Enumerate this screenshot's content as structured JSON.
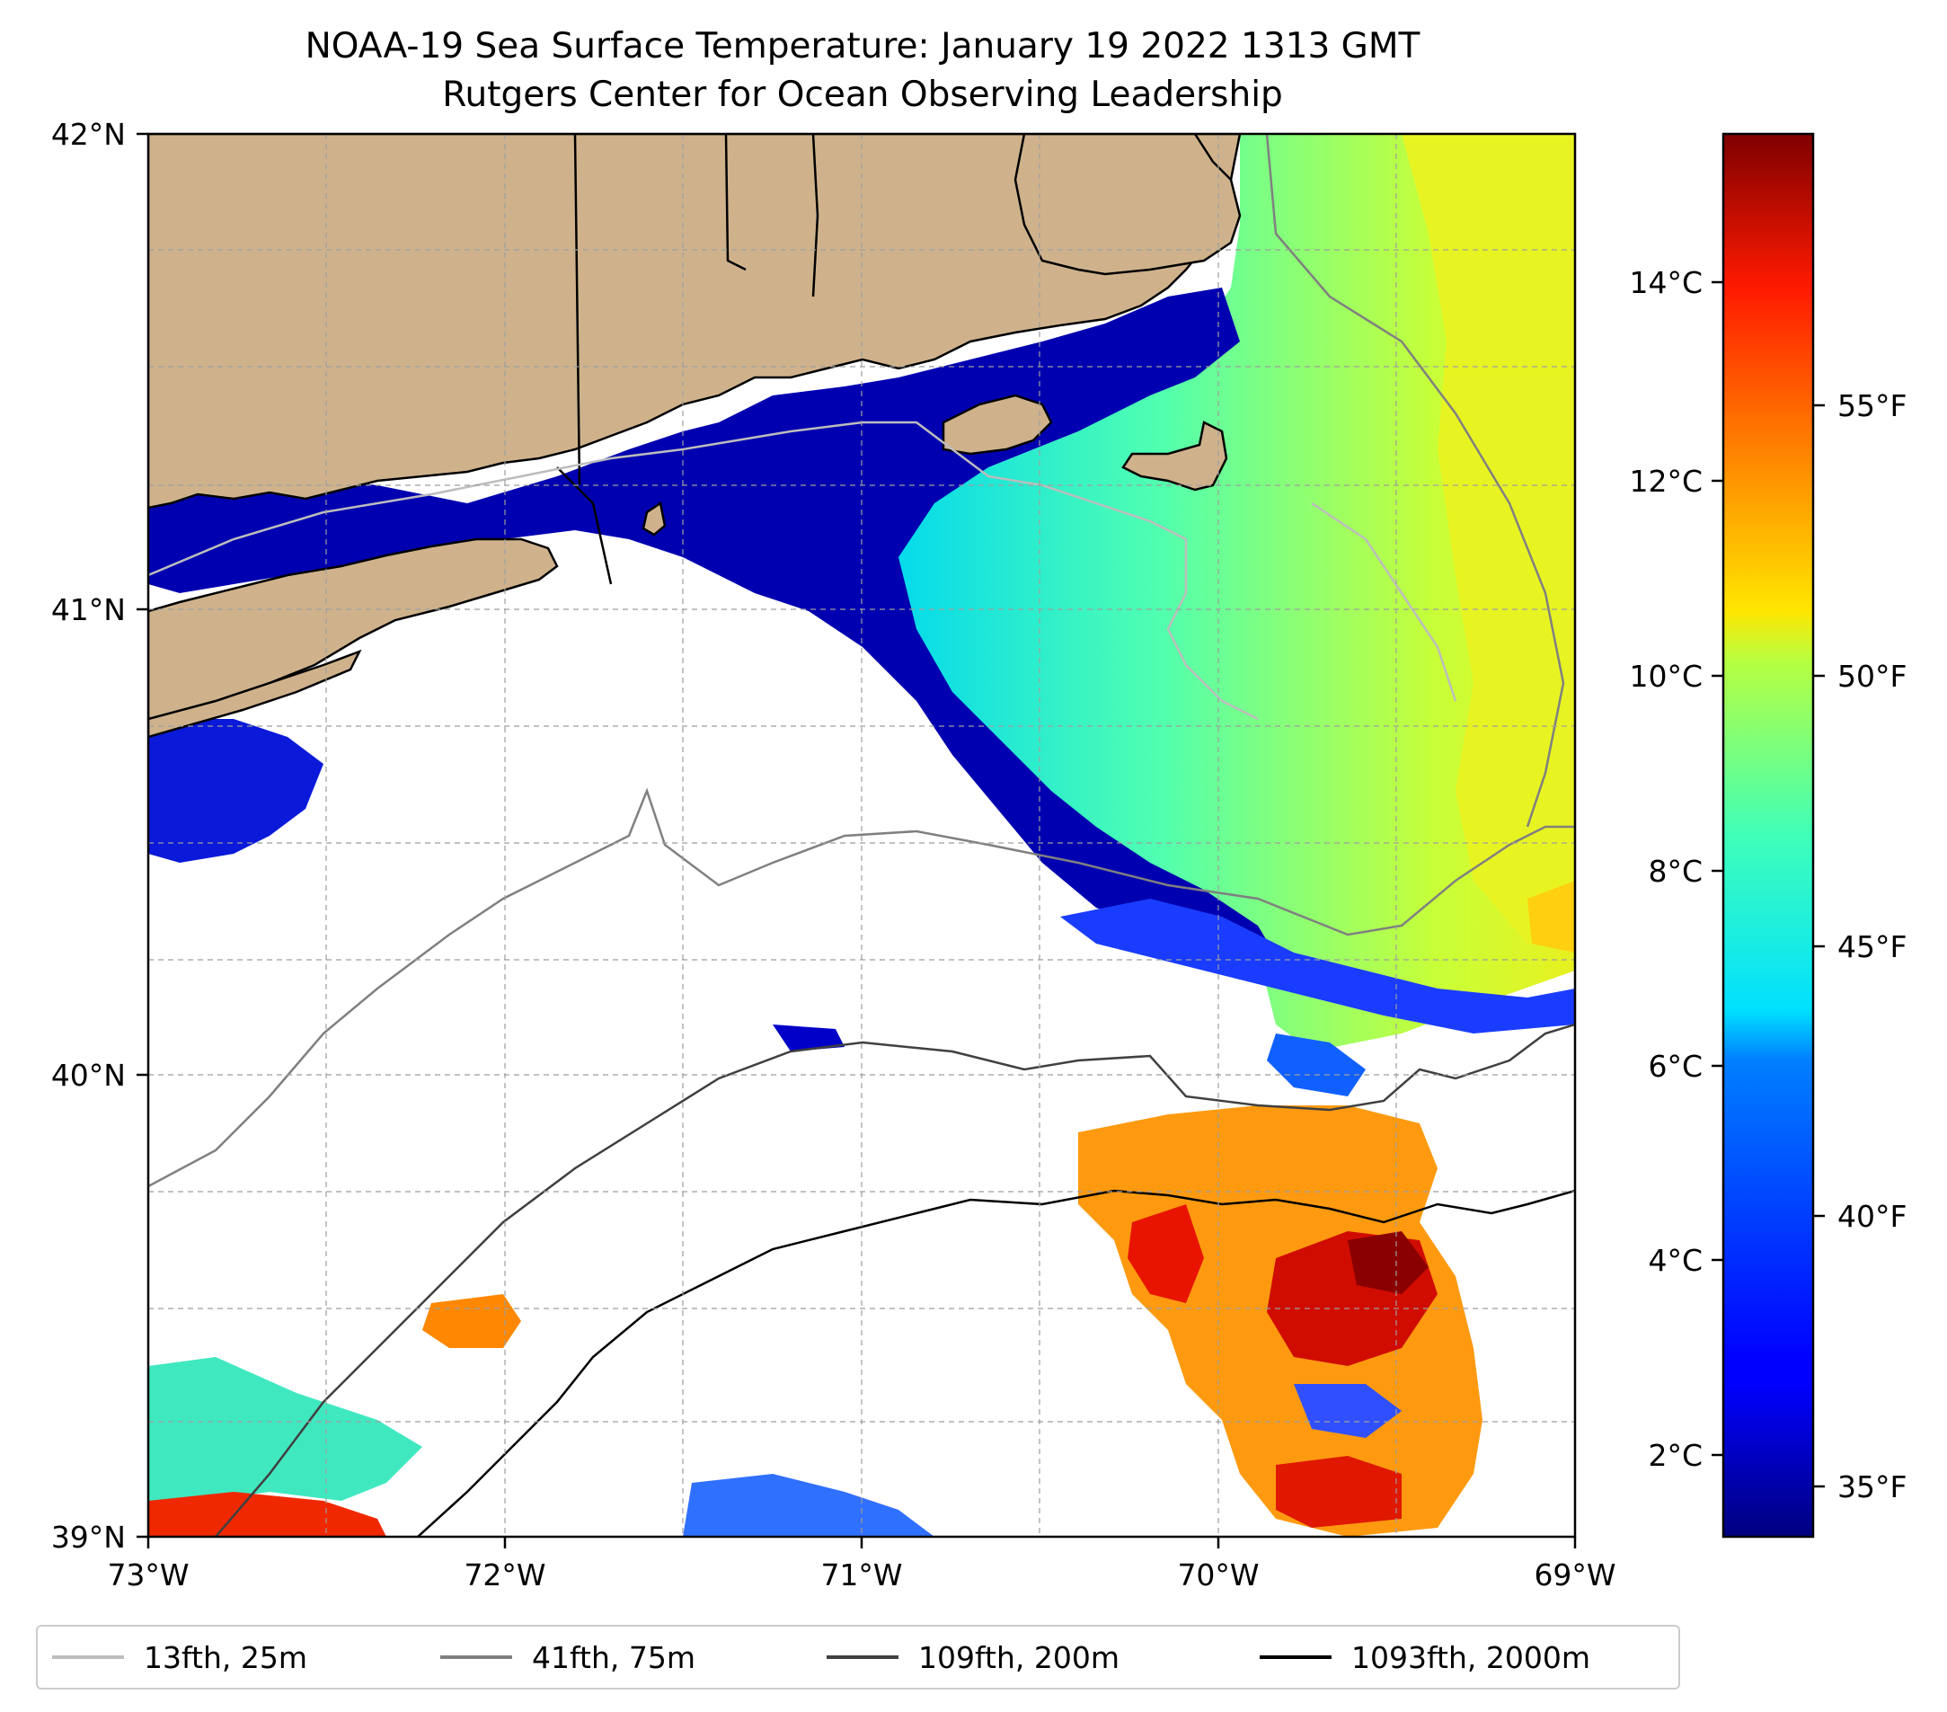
{
  "title": "NOAA-19 Sea Surface Temperature: January 19 2022 1313 GMT",
  "subtitle": "Rutgers Center for Ocean Observing Leadership",
  "map": {
    "lon_range": [
      -73,
      -69
    ],
    "lat_range": [
      39,
      42
    ],
    "lon_ticks": [
      "73°W",
      "72°W",
      "71°W",
      "70°W",
      "69°W"
    ],
    "lat_ticks": [
      "42°N",
      "41°N",
      "40°N",
      "39°N"
    ],
    "gridlines": true,
    "colors": {
      "land": "#cfb28c",
      "no_data": "#ffffff",
      "coast": "#000000"
    }
  },
  "colorbar": {
    "colormap": "jet",
    "celsius_ticks": [
      "14°C",
      "12°C",
      "10°C",
      "8°C",
      "6°C",
      "4°C",
      "2°C"
    ],
    "fahrenheit_ticks": [
      "55°F",
      "50°F",
      "45°F",
      "40°F",
      "35°F"
    ],
    "range_celsius": [
      1.3,
      15.7
    ]
  },
  "legend": {
    "items": [
      {
        "label": "13fth, 25m",
        "color": "#bdbdbd"
      },
      {
        "label": "41fth, 75m",
        "color": "#808080"
      },
      {
        "label": "109fth, 200m",
        "color": "#404040"
      },
      {
        "label": "1093fth, 2000m",
        "color": "#000000"
      }
    ]
  }
}
